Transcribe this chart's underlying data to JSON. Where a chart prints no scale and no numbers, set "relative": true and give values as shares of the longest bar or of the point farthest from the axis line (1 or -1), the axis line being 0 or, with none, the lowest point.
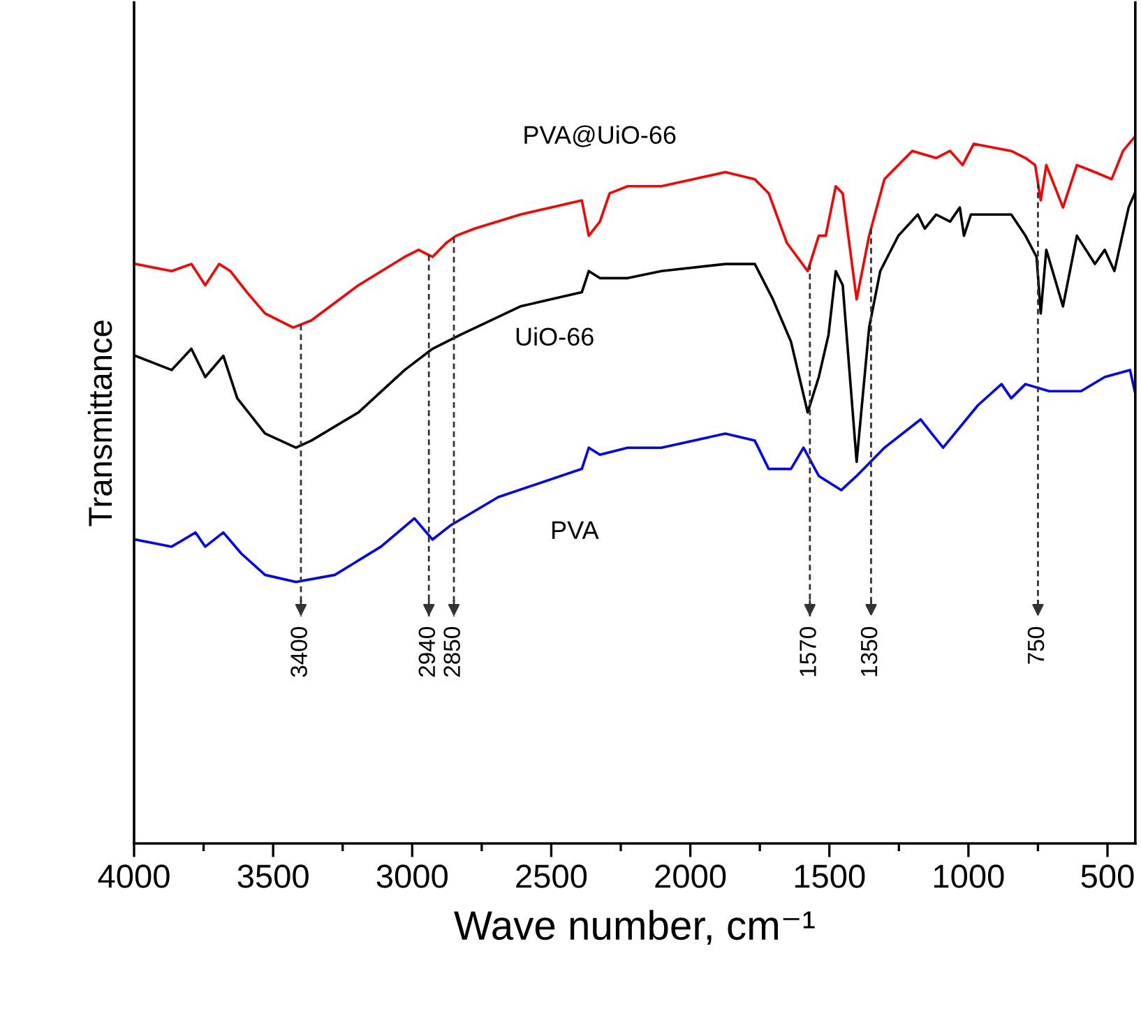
{
  "chart_data": {
    "type": "line",
    "relative": true,
    "xlabel": "Wave number, cm⁻¹",
    "ylabel": "Transmittance",
    "xlim": [
      4000,
      400
    ],
    "xticks": [
      4000,
      {
        "value": 3750,
        "label": null
      },
      3500,
      {
        "value": 3250,
        "label": null
      },
      3000,
      {
        "value": 2750,
        "label": null
      },
      2500,
      {
        "value": 2250,
        "label": null
      },
      2000,
      {
        "value": 1750,
        "label": null
      },
      1500,
      {
        "value": 1250,
        "label": null
      },
      1000,
      {
        "value": 750,
        "label": null
      },
      500
    ],
    "tick_labels": "x",
    "series": [
      {
        "name": "PVA@UiO-66",
        "color": "#ff0000",
        "x": [
          3995,
          3865,
          3794,
          3744,
          3694,
          3654,
          3594,
          3529,
          3428,
          3363,
          3193,
          3027,
          2977,
          2927,
          2877,
          2842,
          2776,
          2611,
          2390,
          2365,
          2325,
          2290,
          2225,
          2104,
          1874,
          1768,
          1718,
          1653,
          1578,
          1538,
          1513,
          1477,
          1452,
          1402,
          1357,
          1302,
          1202,
          1116,
          1066,
          1021,
          981,
          846,
          795,
          760,
          740,
          720,
          660,
          610,
          545,
          485,
          444,
          402
        ],
        "values": [
          0.82,
          0.81,
          0.82,
          0.79,
          0.82,
          0.81,
          0.78,
          0.75,
          0.73,
          0.74,
          0.79,
          0.83,
          0.84,
          0.83,
          0.85,
          0.86,
          0.87,
          0.89,
          0.91,
          0.86,
          0.88,
          0.92,
          0.93,
          0.93,
          0.95,
          0.94,
          0.92,
          0.85,
          0.81,
          0.86,
          0.86,
          0.93,
          0.92,
          0.77,
          0.86,
          0.94,
          0.98,
          0.97,
          0.98,
          0.96,
          0.99,
          0.98,
          0.97,
          0.96,
          0.91,
          0.96,
          0.9,
          0.96,
          0.95,
          0.94,
          0.98,
          1
        ]
      },
      {
        "name": "UiO-66",
        "color": "#000000",
        "x": [
          3995,
          3865,
          3794,
          3744,
          3679,
          3629,
          3529,
          3418,
          3363,
          3193,
          3027,
          2927,
          2826,
          2611,
          2390,
          2365,
          2325,
          2225,
          2104,
          1874,
          1768,
          1703,
          1638,
          1578,
          1538,
          1503,
          1477,
          1452,
          1402,
          1357,
          1317,
          1252,
          1182,
          1157,
          1116,
          1066,
          1031,
          1016,
          991,
          846,
          795,
          755,
          740,
          720,
          660,
          610,
          545,
          510,
          475,
          424,
          402
        ],
        "values": [
          0.69,
          0.67,
          0.7,
          0.66,
          0.69,
          0.63,
          0.58,
          0.56,
          0.57,
          0.61,
          0.67,
          0.7,
          0.72,
          0.76,
          0.78,
          0.81,
          0.8,
          0.8,
          0.81,
          0.82,
          0.82,
          0.77,
          0.71,
          0.61,
          0.66,
          0.72,
          0.81,
          0.79,
          0.54,
          0.73,
          0.81,
          0.86,
          0.89,
          0.87,
          0.89,
          0.88,
          0.9,
          0.86,
          0.89,
          0.89,
          0.86,
          0.83,
          0.75,
          0.84,
          0.76,
          0.86,
          0.82,
          0.84,
          0.81,
          0.9,
          0.92
        ]
      },
      {
        "name": "PVA",
        "color": "#0000ff",
        "x": [
          3995,
          3865,
          3779,
          3744,
          3679,
          3614,
          3529,
          3418,
          3278,
          3112,
          2992,
          2927,
          2862,
          2691,
          2390,
          2365,
          2325,
          2225,
          2104,
          1874,
          1768,
          1718,
          1638,
          1593,
          1538,
          1457,
          1402,
          1302,
          1172,
          1132,
          1091,
          966,
          881,
          846,
          795,
          710,
          595,
          510,
          419,
          402
        ],
        "values": [
          0.43,
          0.42,
          0.44,
          0.42,
          0.44,
          0.41,
          0.38,
          0.37,
          0.38,
          0.42,
          0.46,
          0.43,
          0.45,
          0.49,
          0.53,
          0.56,
          0.55,
          0.56,
          0.56,
          0.58,
          0.57,
          0.53,
          0.53,
          0.56,
          0.52,
          0.5,
          0.52,
          0.56,
          0.6,
          0.58,
          0.56,
          0.62,
          0.65,
          0.63,
          0.65,
          0.64,
          0.64,
          0.66,
          0.67,
          0.64
        ]
      }
    ],
    "ref_lines": [
      {
        "axis": "x",
        "value": 3400,
        "label": "3400",
        "line_style": "dashed"
      },
      {
        "axis": "x",
        "value": 2940,
        "label": "2940",
        "line_style": "dashed"
      },
      {
        "axis": "x",
        "value": 2850,
        "label": "2850",
        "line_style": "dashed"
      },
      {
        "axis": "x",
        "value": 1570,
        "label": "1570",
        "line_style": "dashed"
      },
      {
        "axis": "x",
        "value": 1350,
        "label": "1350",
        "line_style": "dashed"
      },
      {
        "axis": "x",
        "value": 750,
        "label": "750",
        "line_style": "dashed"
      }
    ]
  }
}
